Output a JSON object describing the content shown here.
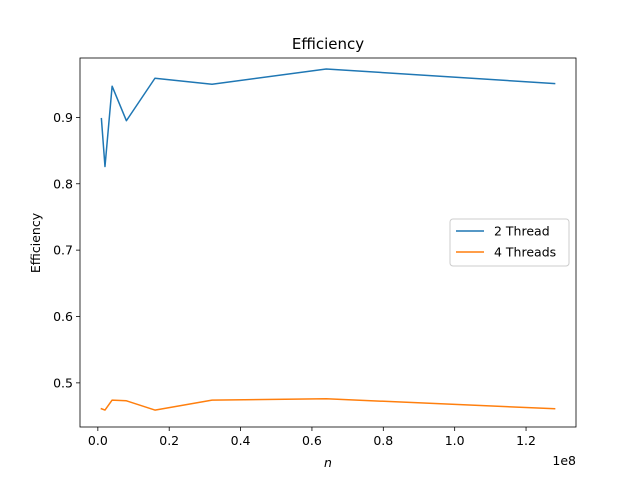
{
  "chart_data": {
    "type": "line",
    "title": "Efficiency",
    "xlabel": "n",
    "ylabel": "Efficiency",
    "x_offset_label": "1e8",
    "xlim": [
      -5000000,
      134000000
    ],
    "ylim": [
      0.4335,
      0.9895
    ],
    "x_ticks": [
      0,
      20000000,
      40000000,
      60000000,
      80000000,
      100000000,
      120000000
    ],
    "x_tick_labels": [
      "0.0",
      "0.2",
      "0.4",
      "0.6",
      "0.8",
      "1.0",
      "1.2"
    ],
    "y_ticks": [
      0.5,
      0.6,
      0.7,
      0.8,
      0.9
    ],
    "y_tick_labels": [
      "0.5",
      "0.6",
      "0.7",
      "0.8",
      "0.9"
    ],
    "grid": false,
    "legend_position": "center-right",
    "x": [
      1000000,
      2000000,
      4000000,
      8000000,
      16000000,
      32000000,
      64000000,
      128000000
    ],
    "series": [
      {
        "name": "2 Thread",
        "color": "#1f77b4",
        "values": [
          0.898,
          0.826,
          0.947,
          0.895,
          0.959,
          0.95,
          0.973,
          0.951
        ]
      },
      {
        "name": "4 Threads",
        "color": "#ff7f0e",
        "values": [
          0.461,
          0.459,
          0.474,
          0.473,
          0.459,
          0.474,
          0.476,
          0.461
        ]
      }
    ]
  }
}
